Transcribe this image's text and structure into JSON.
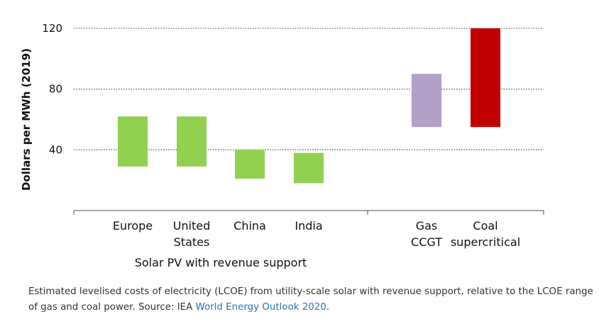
{
  "chart_data": {
    "type": "bar",
    "subtype": "floating-range",
    "ylabel": "Dollars per MWh (2019)",
    "yticks": [
      40,
      80,
      120
    ],
    "ylim": [
      0,
      120
    ],
    "grid": "dotted horizontal",
    "groups": [
      {
        "label": "Solar PV with revenue support",
        "categories": [
          {
            "label": [
              "Europe"
            ],
            "low": 29,
            "high": 62,
            "color": "#92d050"
          },
          {
            "label": [
              "United",
              "States"
            ],
            "low": 29,
            "high": 62,
            "color": "#92d050"
          },
          {
            "label": [
              "China"
            ],
            "low": 21,
            "high": 40,
            "color": "#92d050"
          },
          {
            "label": [
              "India"
            ],
            "low": 18,
            "high": 38,
            "color": "#92d050"
          }
        ]
      },
      {
        "label": "",
        "categories": [
          {
            "label": [
              "Gas",
              "CCGT"
            ],
            "low": 55,
            "high": 90,
            "color": "#b1a0c7"
          },
          {
            "label": [
              "Coal",
              "supercritical"
            ],
            "low": 55,
            "high": 120,
            "color": "#c00000"
          }
        ]
      }
    ]
  },
  "caption": {
    "text": "Estimated levelised costs of electricity (LCOE) from utility-scale solar with revenue support, relative to the LCOE range of gas and coal power. Source: IEA ",
    "link": "World Energy Outlook 2020",
    "end": "."
  }
}
